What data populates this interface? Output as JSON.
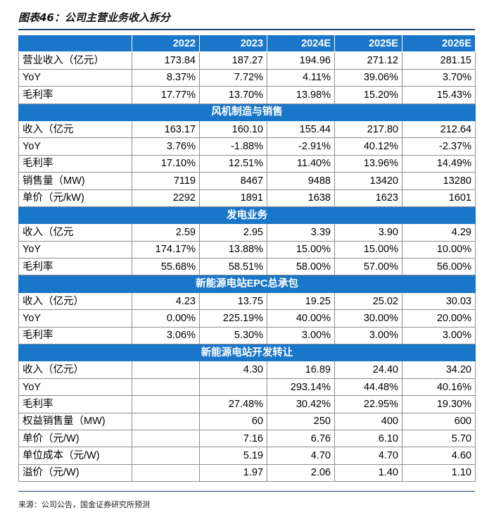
{
  "title": "图表46：公司主营业务收入拆分",
  "header": [
    "",
    "2022",
    "2023",
    "2024E",
    "2025E",
    "2026E"
  ],
  "rows": [
    {
      "type": "data",
      "cells": [
        "营业收入（亿元）",
        "173.84",
        "187.27",
        "194.96",
        "271.12",
        "281.15"
      ]
    },
    {
      "type": "data",
      "cells": [
        "YoY",
        "8.37%",
        "7.72%",
        "4.11%",
        "39.06%",
        "3.70%"
      ]
    },
    {
      "type": "data",
      "cells": [
        "毛利率",
        "17.77%",
        "13.70%",
        "13.98%",
        "15.20%",
        "15.43%"
      ]
    },
    {
      "type": "section",
      "label": "风机制造与销售"
    },
    {
      "type": "data",
      "cells": [
        "收入（亿元",
        "163.17",
        "160.10",
        "155.44",
        "217.80",
        "212.64"
      ]
    },
    {
      "type": "data",
      "cells": [
        "YoY",
        "3.76%",
        "-1.88%",
        "-2.91%",
        "40.12%",
        "-2.37%"
      ]
    },
    {
      "type": "data",
      "cells": [
        "毛利率",
        "17.10%",
        "12.51%",
        "11.40%",
        "13.96%",
        "14.49%"
      ]
    },
    {
      "type": "data",
      "cells": [
        "销售量（MW)",
        "7119",
        "8467",
        "9488",
        "13420",
        "13280"
      ]
    },
    {
      "type": "data",
      "cells": [
        "单价（元/kW)",
        "2292",
        "1891",
        "1638",
        "1623",
        "1601"
      ]
    },
    {
      "type": "section",
      "label": "发电业务"
    },
    {
      "type": "data",
      "cells": [
        "收入（亿元",
        "2.59",
        "2.95",
        "3.39",
        "3.90",
        "4.29"
      ]
    },
    {
      "type": "data",
      "cells": [
        "YoY",
        "174.17%",
        "13.88%",
        "15.00%",
        "15.00%",
        "10.00%"
      ]
    },
    {
      "type": "data",
      "cells": [
        "毛利率",
        "55.68%",
        "58.51%",
        "58.00%",
        "57.00%",
        "56.00%"
      ]
    },
    {
      "type": "section",
      "label": "新能源电站EPC总承包"
    },
    {
      "type": "data",
      "cells": [
        "收入（亿元）",
        "4.23",
        "13.75",
        "19.25",
        "25.02",
        "30.03"
      ]
    },
    {
      "type": "data",
      "cells": [
        "YoY",
        "0.00%",
        "225.19%",
        "40.00%",
        "30.00%",
        "20.00%"
      ]
    },
    {
      "type": "data",
      "cells": [
        "毛利率",
        "3.06%",
        "5.30%",
        "3.00%",
        "3.00%",
        "3.00%"
      ]
    },
    {
      "type": "section",
      "label": "新能源电站开发转让"
    },
    {
      "type": "data",
      "cells": [
        "收入（亿元）",
        "",
        "4.30",
        "16.89",
        "24.40",
        "34.20"
      ]
    },
    {
      "type": "data",
      "cells": [
        "YoY",
        "",
        "",
        "293.14%",
        "44.48%",
        "40.16%"
      ]
    },
    {
      "type": "data",
      "cells": [
        "毛利率",
        "",
        "27.48%",
        "30.42%",
        "22.95%",
        "19.30%"
      ]
    },
    {
      "type": "data",
      "cells": [
        "权益销售量（MW)",
        "",
        "60",
        "250",
        "400",
        "600"
      ]
    },
    {
      "type": "data",
      "cells": [
        "单价（元/W)",
        "",
        "7.16",
        "6.76",
        "6.10",
        "5.70"
      ]
    },
    {
      "type": "data",
      "cells": [
        "单位成本（元/W)",
        "",
        "5.19",
        "4.70",
        "4.70",
        "4.60"
      ]
    },
    {
      "type": "data",
      "cells": [
        "溢价（元/W)",
        "",
        "1.97",
        "2.06",
        "1.40",
        "1.10"
      ]
    }
  ],
  "source": "来源：公司公告，国金证券研究所预测"
}
